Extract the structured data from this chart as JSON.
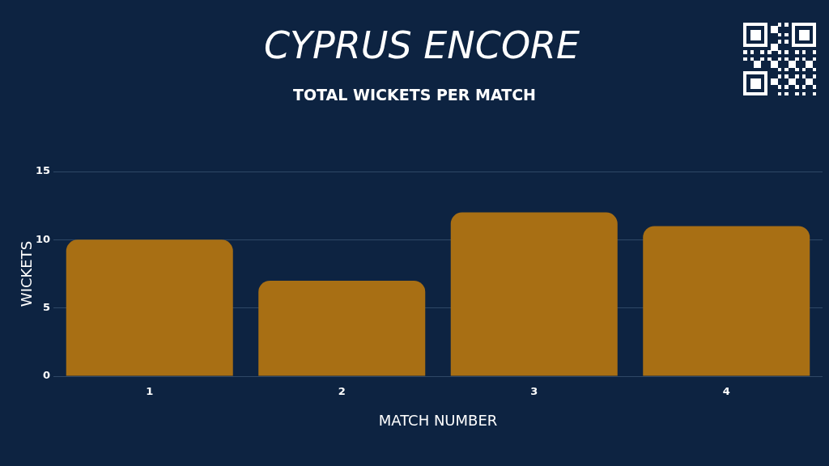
{
  "chart_data": {
    "type": "bar",
    "title": "CYPRUS ENCORE",
    "subtitle": "TOTAL WICKETS PER MATCH",
    "xlabel": "MATCH NUMBER",
    "ylabel": "WICKETS",
    "categories": [
      "1",
      "2",
      "3",
      "4"
    ],
    "values": [
      10,
      7,
      12,
      11
    ],
    "color": "#a86f14",
    "ylim": [
      0,
      15
    ],
    "yticks": [
      0,
      5,
      10,
      15
    ],
    "grid": "y"
  }
}
